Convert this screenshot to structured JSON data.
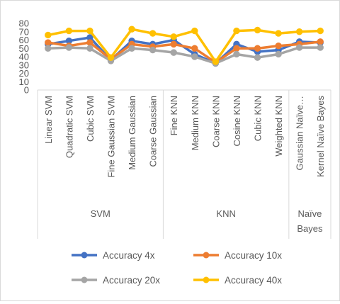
{
  "chart_data": {
    "type": "line",
    "title": "",
    "xlabel": "",
    "ylabel": "",
    "ylim": [
      0,
      80
    ],
    "y_ticks": [
      0,
      10,
      20,
      30,
      40,
      50,
      60,
      70,
      80
    ],
    "grid": false,
    "legend_position": "bottom",
    "categories": [
      "Linear SVM",
      "Quadratic SVM",
      "Cubic SVM",
      "Fine Gaussian SVM",
      "Medium Gaussian",
      "Coarse Gaussian",
      "Fine KNN",
      "Medium KNN",
      "Coarse KNN",
      "Cosine KNN",
      "Cubic KNN",
      "Weighted KNN",
      "Gaussian Naïve…",
      "Kernel Naïve Bayes"
    ],
    "groups": [
      {
        "label": "SVM",
        "count": 6
      },
      {
        "label": "KNN",
        "count": 6
      },
      {
        "label": "Naïve Bayes",
        "lines": [
          "Naïve",
          "Bayes"
        ],
        "count": 2
      }
    ],
    "series": [
      {
        "name": "Accuracy 4x",
        "color": "#4472c4",
        "values": [
          55,
          59,
          63,
          36,
          59,
          55,
          60,
          43,
          32,
          55,
          46,
          48,
          58,
          57
        ]
      },
      {
        "name": "Accuracy 10x",
        "color": "#ed7d31",
        "values": [
          57,
          53,
          57,
          37,
          55,
          52,
          55,
          50,
          33,
          50,
          50,
          53,
          55,
          58
        ]
      },
      {
        "name": "Accuracy 20x",
        "color": "#a5a5a5",
        "values": [
          50,
          51,
          50,
          35,
          50,
          48,
          45,
          40,
          32,
          43,
          39,
          43,
          51,
          51
        ]
      },
      {
        "name": "Accuracy 40x",
        "color": "#ffc000",
        "values": [
          66,
          71,
          71,
          39,
          73,
          68,
          64,
          71,
          34,
          71,
          72,
          68,
          70,
          71
        ]
      }
    ]
  }
}
